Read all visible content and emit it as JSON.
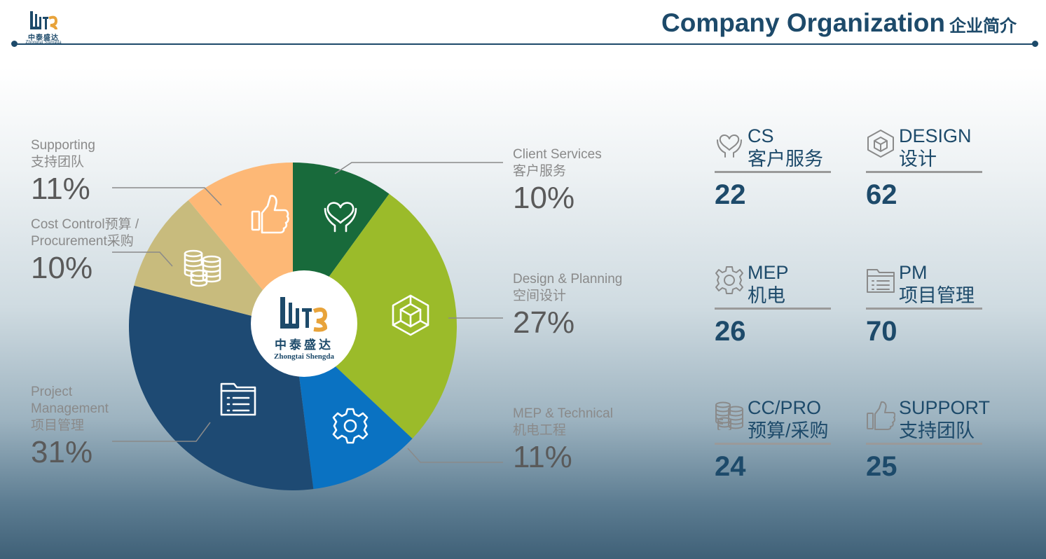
{
  "header": {
    "title_en": "Company Organization",
    "title_cn": "企业简介",
    "logo_cn": "中泰盛达",
    "logo_en": "Zhongtai Shengda"
  },
  "colors": {
    "accent": "#1d4a6a",
    "cs": "#186a3b",
    "design": "#9bbb2a",
    "mep": "#0a72c2",
    "pm": "#1e4a73",
    "cc": "#c8bb7d",
    "support": "#fdb876"
  },
  "chart_data": {
    "type": "pie",
    "slices": [
      {
        "key": "cs",
        "label_en": "Client Services",
        "label_cn": "客户服务",
        "value": 10,
        "pct_label": "10%",
        "color": "#186a3b",
        "icon": "heart-hands-icon"
      },
      {
        "key": "design",
        "label_en": "Design & Planning",
        "label_cn": "空间设计",
        "value": 27,
        "pct_label": "27%",
        "color": "#9bbb2a",
        "icon": "cube-icon"
      },
      {
        "key": "mep",
        "label_en": "MEP & Technical",
        "label_cn": "机电工程",
        "value": 11,
        "pct_label": "11%",
        "color": "#0a72c2",
        "icon": "gear-icon"
      },
      {
        "key": "pm",
        "label_en": "Project Management",
        "label_cn": "项目管理",
        "value": 31,
        "pct_label": "31%",
        "color": "#1e4a73",
        "icon": "folder-list-icon"
      },
      {
        "key": "cc",
        "label_en": "Cost Control预算 / Procurement采购",
        "label_cn": "",
        "value": 10,
        "pct_label": "10%",
        "color": "#c8bb7d",
        "icon": "coins-icon"
      },
      {
        "key": "support",
        "label_en": "Supporting",
        "label_cn": "支持团队",
        "value": 11,
        "pct_label": "11%",
        "color": "#fdb876",
        "icon": "thumbs-up-icon"
      }
    ]
  },
  "labels": {
    "support": {
      "line1": "Supporting",
      "line2": "支持团队",
      "pct": "11%"
    },
    "cc": {
      "line1": "Cost Control预算 /",
      "line2": "Procurement采购",
      "pct": "10%"
    },
    "pm": {
      "line1": "Project",
      "line2": "Management",
      "line3": "项目管理",
      "pct": "31%"
    },
    "cs": {
      "line1": "Client Services",
      "line2": "客户服务",
      "pct": "10%"
    },
    "design": {
      "line1": "Design & Planning",
      "line2": "空间设计",
      "pct": "27%"
    },
    "mep": {
      "line1": "MEP & Technical",
      "line2": "机电工程",
      "pct": "11%"
    }
  },
  "stats": [
    {
      "key": "cs",
      "en": "CS",
      "cn": "客户服务",
      "count": "22",
      "icon": "heart-hands-icon"
    },
    {
      "key": "design",
      "en": "DESIGN",
      "cn": "设计",
      "count": "62",
      "icon": "cube-icon"
    },
    {
      "key": "mep",
      "en": "MEP",
      "cn": "机电",
      "count": "26",
      "icon": "gear-icon"
    },
    {
      "key": "pm",
      "en": "PM",
      "cn": "项目管理",
      "count": "70",
      "icon": "folder-list-icon"
    },
    {
      "key": "cc",
      "en": "CC/PRO",
      "cn": "预算/采购",
      "count": "24",
      "icon": "coins-icon"
    },
    {
      "key": "support",
      "en": "SUPPORT",
      "cn": "支持团队",
      "count": "25",
      "icon": "thumbs-up-icon"
    }
  ]
}
